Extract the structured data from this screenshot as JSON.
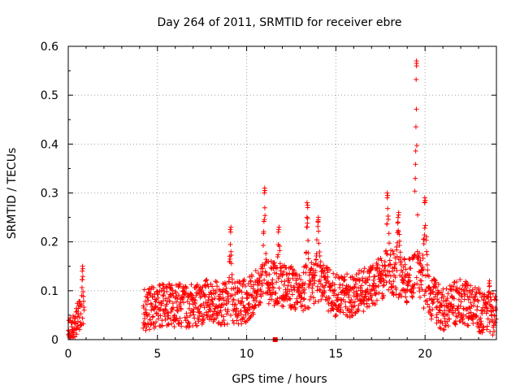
{
  "chart_data": {
    "type": "scatter",
    "title": "Day 264 of 2011, SRMTID for receiver ebre",
    "xlabel": "GPS time / hours",
    "ylabel": "SRMTID / TECUs",
    "xlim": [
      0,
      24
    ],
    "ylim": [
      0,
      0.6
    ],
    "xticks": [
      "0",
      "5",
      "10",
      "15",
      "20"
    ],
    "yticks": [
      "0",
      "0.1",
      "0.2",
      "0.3",
      "0.4",
      "0.5",
      "0.6"
    ],
    "grid": true,
    "marker": "+",
    "color": "#ff0000",
    "series": [
      {
        "name": "SRMTID",
        "segments": [
          {
            "x_start": 0.0,
            "x_end": 0.9,
            "baseline": [
              [
                0.0,
                0.02
              ],
              [
                0.3,
                0.03
              ],
              [
                0.6,
                0.05
              ],
              [
                0.9,
                0.04
              ]
            ],
            "spread": 0.03
          },
          {
            "x_start": 4.2,
            "x_end": 24.0,
            "baseline": [
              [
                4.2,
                0.06
              ],
              [
                5.0,
                0.07
              ],
              [
                6.0,
                0.07
              ],
              [
                7.0,
                0.07
              ],
              [
                8.0,
                0.08
              ],
              [
                9.0,
                0.07
              ],
              [
                10.0,
                0.08
              ],
              [
                11.0,
                0.12
              ],
              [
                12.0,
                0.11
              ],
              [
                13.0,
                0.1
              ],
              [
                14.0,
                0.12
              ],
              [
                15.0,
                0.09
              ],
              [
                16.0,
                0.09
              ],
              [
                17.0,
                0.11
              ],
              [
                18.0,
                0.14
              ],
              [
                19.0,
                0.12
              ],
              [
                19.6,
                0.14
              ],
              [
                20.0,
                0.1
              ],
              [
                21.0,
                0.06
              ],
              [
                22.0,
                0.08
              ],
              [
                23.0,
                0.06
              ],
              [
                24.0,
                0.05
              ]
            ],
            "spread": 0.045
          }
        ],
        "peaks": [
          {
            "x": 0.8,
            "y": 0.15,
            "width": 0.1
          },
          {
            "x": 9.1,
            "y": 0.23,
            "width": 0.15
          },
          {
            "x": 11.0,
            "y": 0.31,
            "width": 0.12
          },
          {
            "x": 11.8,
            "y": 0.23,
            "width": 0.15
          },
          {
            "x": 13.4,
            "y": 0.28,
            "width": 0.12
          },
          {
            "x": 14.0,
            "y": 0.25,
            "width": 0.2
          },
          {
            "x": 17.9,
            "y": 0.3,
            "width": 0.15
          },
          {
            "x": 18.5,
            "y": 0.26,
            "width": 0.2
          },
          {
            "x": 19.5,
            "y": 0.57,
            "width": 0.12
          },
          {
            "x": 20.0,
            "y": 0.29,
            "width": 0.2
          },
          {
            "x": 23.6,
            "y": 0.12,
            "width": 0.1
          }
        ],
        "markers_square": [
          {
            "x": 11.6,
            "y": 0.0
          }
        ]
      }
    ]
  }
}
